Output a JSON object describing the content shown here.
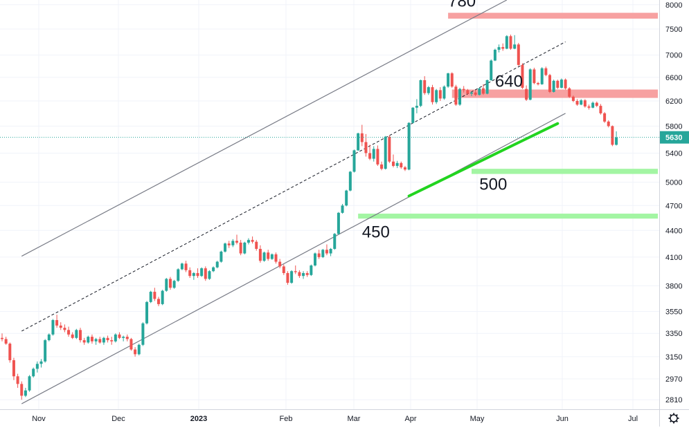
{
  "chart_data": {
    "type": "candlestick",
    "price_axis": {
      "ticks": [
        2810,
        2970,
        3150,
        3350,
        3550,
        3800,
        4100,
        4400,
        4700,
        5000,
        5400,
        5800,
        6200,
        6600,
        7000,
        7500,
        8000
      ],
      "range": [
        2740,
        8100
      ],
      "labels": [
        "2810",
        "2970",
        "3150",
        "3350",
        "3550",
        "3800",
        "4100",
        "4400",
        "4700",
        "5000",
        "5400",
        "5800",
        "6200",
        "6600",
        "7000",
        "7500",
        "8000"
      ]
    },
    "time_axis": {
      "ticks": [
        {
          "label": "Nov",
          "bold": false
        },
        {
          "label": "Dec",
          "bold": false
        },
        {
          "label": "2023",
          "bold": true
        },
        {
          "label": "Feb",
          "bold": false
        },
        {
          "label": "Mar",
          "bold": false
        },
        {
          "label": "Apr",
          "bold": false
        },
        {
          "label": "May",
          "bold": false
        },
        {
          "label": "Jun",
          "bold": false
        },
        {
          "label": "Jul",
          "bold": false
        }
      ]
    },
    "last_price": {
      "value": 5630,
      "label": "5630",
      "color": "#26a69a"
    },
    "colors": {
      "up": "#26a69a",
      "down": "#ef5350",
      "grid": "#f0f3fa",
      "channel": "#787b86",
      "support": "#22d41f",
      "resistance_zone": "#f7a1a1",
      "support_zone": "#a3f5a3"
    },
    "candles": [
      [
        3310,
        3350,
        3280,
        3300
      ],
      [
        3300,
        3320,
        3250,
        3260
      ],
      [
        3260,
        3270,
        3100,
        3120
      ],
      [
        3120,
        3140,
        2960,
        2990
      ],
      [
        2990,
        3010,
        2900,
        2930
      ],
      [
        2930,
        2950,
        2810,
        2840
      ],
      [
        2840,
        2900,
        2830,
        2880
      ],
      [
        2880,
        3000,
        2870,
        2990
      ],
      [
        2990,
        3060,
        2980,
        3050
      ],
      [
        3050,
        3110,
        3020,
        3090
      ],
      [
        3090,
        3130,
        3060,
        3110
      ],
      [
        3110,
        3300,
        3100,
        3290
      ],
      [
        3290,
        3350,
        3280,
        3340
      ],
      [
        3340,
        3480,
        3330,
        3470
      ],
      [
        3470,
        3520,
        3400,
        3420
      ],
      [
        3420,
        3450,
        3380,
        3400
      ],
      [
        3400,
        3430,
        3360,
        3380
      ],
      [
        3380,
        3410,
        3320,
        3340
      ],
      [
        3340,
        3360,
        3300,
        3310
      ],
      [
        3310,
        3390,
        3300,
        3380
      ],
      [
        3380,
        3400,
        3270,
        3290
      ],
      [
        3290,
        3310,
        3250,
        3270
      ],
      [
        3270,
        3330,
        3260,
        3320
      ],
      [
        3320,
        3340,
        3260,
        3280
      ],
      [
        3280,
        3310,
        3250,
        3300
      ],
      [
        3300,
        3320,
        3260,
        3270
      ],
      [
        3270,
        3320,
        3250,
        3310
      ],
      [
        3310,
        3330,
        3270,
        3290
      ],
      [
        3290,
        3320,
        3250,
        3280
      ],
      [
        3280,
        3350,
        3270,
        3340
      ],
      [
        3340,
        3360,
        3300,
        3310
      ],
      [
        3310,
        3330,
        3280,
        3320
      ],
      [
        3320,
        3340,
        3280,
        3300
      ],
      [
        3300,
        3310,
        3200,
        3210
      ],
      [
        3210,
        3230,
        3150,
        3170
      ],
      [
        3170,
        3260,
        3160,
        3250
      ],
      [
        3250,
        3450,
        3240,
        3440
      ],
      [
        3440,
        3650,
        3430,
        3640
      ],
      [
        3640,
        3750,
        3630,
        3740
      ],
      [
        3740,
        3780,
        3650,
        3670
      ],
      [
        3670,
        3690,
        3600,
        3620
      ],
      [
        3620,
        3760,
        3610,
        3750
      ],
      [
        3750,
        3880,
        3740,
        3870
      ],
      [
        3870,
        3890,
        3760,
        3780
      ],
      [
        3780,
        3860,
        3770,
        3850
      ],
      [
        3850,
        3980,
        3840,
        3970
      ],
      [
        3970,
        4040,
        3960,
        4030
      ],
      [
        4030,
        4060,
        3940,
        3960
      ],
      [
        3960,
        3990,
        3880,
        3900
      ],
      [
        3900,
        3940,
        3860,
        3930
      ],
      [
        3930,
        3980,
        3880,
        3900
      ],
      [
        3900,
        3990,
        3890,
        3980
      ],
      [
        3980,
        4000,
        3850,
        3870
      ],
      [
        3870,
        3960,
        3860,
        3950
      ],
      [
        3950,
        4000,
        3940,
        3990
      ],
      [
        3990,
        4060,
        3980,
        4050
      ],
      [
        4050,
        4170,
        4040,
        4160
      ],
      [
        4160,
        4260,
        4150,
        4250
      ],
      [
        4250,
        4280,
        4200,
        4230
      ],
      [
        4230,
        4300,
        4210,
        4280
      ],
      [
        4280,
        4350,
        4240,
        4260
      ],
      [
        4260,
        4290,
        4120,
        4140
      ],
      [
        4140,
        4270,
        4130,
        4260
      ],
      [
        4260,
        4310,
        4240,
        4290
      ],
      [
        4290,
        4330,
        4250,
        4270
      ],
      [
        4270,
        4290,
        4170,
        4190
      ],
      [
        4190,
        4230,
        4040,
        4060
      ],
      [
        4060,
        4160,
        4050,
        4150
      ],
      [
        4150,
        4180,
        4060,
        4080
      ],
      [
        4080,
        4140,
        4070,
        4130
      ],
      [
        4130,
        4150,
        4030,
        4050
      ],
      [
        4050,
        4080,
        3980,
        4000
      ],
      [
        4000,
        4020,
        3910,
        3930
      ],
      [
        3930,
        3950,
        3810,
        3830
      ],
      [
        3830,
        3960,
        3820,
        3950
      ],
      [
        3950,
        4010,
        3920,
        3940
      ],
      [
        3940,
        3960,
        3880,
        3900
      ],
      [
        3900,
        3950,
        3870,
        3930
      ],
      [
        3930,
        3950,
        3890,
        3910
      ],
      [
        3910,
        4020,
        3900,
        4010
      ],
      [
        4010,
        4150,
        4000,
        4140
      ],
      [
        4140,
        4180,
        4080,
        4100
      ],
      [
        4100,
        4190,
        4090,
        4180
      ],
      [
        4180,
        4240,
        4120,
        4140
      ],
      [
        4140,
        4200,
        4110,
        4190
      ],
      [
        4190,
        4370,
        4180,
        4360
      ],
      [
        4360,
        4620,
        4350,
        4610
      ],
      [
        4610,
        4720,
        4600,
        4700
      ],
      [
        4700,
        4900,
        4690,
        4890
      ],
      [
        4890,
        5150,
        4880,
        5140
      ],
      [
        5140,
        5450,
        5130,
        5440
      ],
      [
        5440,
        5700,
        5430,
        5690
      ],
      [
        5690,
        5820,
        5500,
        5560
      ],
      [
        5560,
        5680,
        5350,
        5400
      ],
      [
        5400,
        5520,
        5300,
        5320
      ],
      [
        5320,
        5500,
        5280,
        5460
      ],
      [
        5460,
        5510,
        5220,
        5240
      ],
      [
        5240,
        5280,
        5160,
        5180
      ],
      [
        5180,
        5650,
        5170,
        5640
      ],
      [
        5640,
        5660,
        5260,
        5280
      ],
      [
        5280,
        5380,
        5200,
        5220
      ],
      [
        5220,
        5290,
        5190,
        5260
      ],
      [
        5260,
        5280,
        5180,
        5200
      ],
      [
        5200,
        5220,
        5150,
        5170
      ],
      [
        5170,
        5860,
        5160,
        5850
      ],
      [
        5850,
        6100,
        5840,
        6090
      ],
      [
        6090,
        6230,
        6000,
        6120
      ],
      [
        6120,
        6560,
        6100,
        6550
      ],
      [
        6550,
        6620,
        6300,
        6330
      ],
      [
        6330,
        6450,
        6300,
        6430
      ],
      [
        6430,
        6470,
        6140,
        6180
      ],
      [
        6180,
        6400,
        6150,
        6380
      ],
      [
        6380,
        6430,
        6200,
        6240
      ],
      [
        6240,
        6460,
        6220,
        6440
      ],
      [
        6440,
        6680,
        6420,
        6670
      ],
      [
        6670,
        6690,
        6420,
        6440
      ],
      [
        6440,
        6470,
        6120,
        6140
      ],
      [
        6140,
        6420,
        6120,
        6400
      ],
      [
        6400,
        6450,
        6340,
        6380
      ],
      [
        6380,
        6400,
        6300,
        6320
      ],
      [
        6320,
        6360,
        6280,
        6340
      ],
      [
        6340,
        6380,
        6280,
        6300
      ],
      [
        6300,
        6420,
        6290,
        6410
      ],
      [
        6410,
        6480,
        6300,
        6320
      ],
      [
        6320,
        6560,
        6310,
        6550
      ],
      [
        6550,
        6920,
        6540,
        6900
      ],
      [
        6900,
        7120,
        6890,
        7100
      ],
      [
        7100,
        7200,
        7050,
        7150
      ],
      [
        7150,
        7220,
        7080,
        7120
      ],
      [
        7120,
        7380,
        7110,
        7360
      ],
      [
        7360,
        7390,
        7100,
        7120
      ],
      [
        7120,
        7380,
        7110,
        7200
      ],
      [
        7200,
        7230,
        6800,
        6820
      ],
      [
        6820,
        6850,
        6400,
        6420
      ],
      [
        6400,
        6460,
        6200,
        6220
      ],
      [
        6220,
        6760,
        6210,
        6740
      ],
      [
        6740,
        6770,
        6480,
        6500
      ],
      [
        6500,
        6520,
        6460,
        6480
      ],
      [
        6480,
        6780,
        6470,
        6760
      ],
      [
        6760,
        6790,
        6620,
        6640
      ],
      [
        6640,
        6660,
        6330,
        6350
      ],
      [
        6350,
        6560,
        6340,
        6540
      ],
      [
        6540,
        6560,
        6400,
        6420
      ],
      [
        6420,
        6580,
        6410,
        6560
      ],
      [
        6560,
        6580,
        6390,
        6410
      ],
      [
        6410,
        6430,
        6250,
        6270
      ],
      [
        6270,
        6290,
        6180,
        6200
      ],
      [
        6200,
        6230,
        6120,
        6140
      ],
      [
        6140,
        6230,
        6130,
        6210
      ],
      [
        6210,
        6230,
        6090,
        6110
      ],
      [
        6110,
        6140,
        6060,
        6090
      ],
      [
        6090,
        6190,
        6080,
        6170
      ],
      [
        6170,
        6190,
        6100,
        6120
      ],
      [
        6120,
        6150,
        5980,
        6000
      ],
      [
        6000,
        6020,
        5850,
        5870
      ],
      [
        5870,
        5890,
        5780,
        5800
      ],
      [
        5800,
        5810,
        5500,
        5520
      ],
      [
        5520,
        5720,
        5510,
        5630
      ]
    ],
    "channel_lines": [
      {
        "style": "solid",
        "from": {
          "candle": 5,
          "price": 2780
        },
        "to": {
          "candle": 144,
          "price": 6000
        }
      },
      {
        "style": "solid",
        "from": {
          "candle": 5,
          "price": 4110
        },
        "to": {
          "candle": 129,
          "price": 8100
        }
      },
      {
        "style": "dashed",
        "from": {
          "candle": 5,
          "price": 3370
        },
        "to": {
          "candle": 144,
          "price": 7250
        }
      }
    ],
    "support_trendline": {
      "from": {
        "candle": 104,
        "price": 4820
      },
      "to": {
        "candle": 142,
        "price": 5840
      }
    },
    "zones": [
      {
        "kind": "resistance",
        "label": "780",
        "price_top": 7830,
        "price_bottom": 7710,
        "start_candle": 114,
        "label_price": 7960,
        "label_candle": 114
      },
      {
        "kind": "resistance",
        "label": "640",
        "price_top": 6390,
        "price_bottom": 6250,
        "start_candle": 115,
        "label_price": 6440,
        "label_candle": 126
      },
      {
        "kind": "support",
        "label": "500",
        "price_top": 5180,
        "price_bottom": 5110,
        "start_candle": 120,
        "label_price": 4900,
        "label_candle": 122
      },
      {
        "kind": "support",
        "label": "450",
        "price_top": 4600,
        "price_bottom": 4540,
        "start_candle": 91,
        "label_price": 4320,
        "label_candle": 92
      }
    ]
  }
}
